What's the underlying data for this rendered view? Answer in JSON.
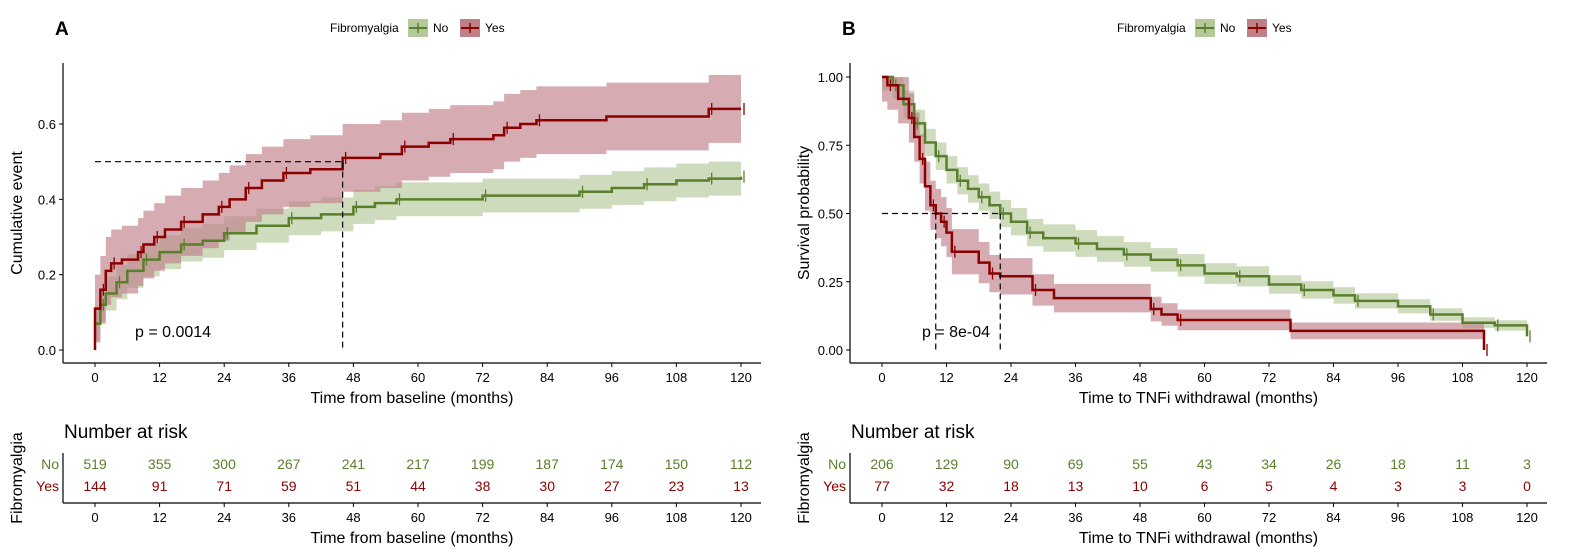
{
  "colors": {
    "No": "#5a7f2b",
    "Yes": "#8b0000",
    "No_fill": "#b4c89a",
    "Yes_fill": "#c08088"
  },
  "chart_data": [
    {
      "type": "line",
      "panel_label": "A",
      "legend_title": "Fibromyalgia",
      "legend_position": "top",
      "xlabel": "Time from baseline (months)",
      "ylabel": "Cumulative event",
      "xlim": [
        0,
        120
      ],
      "ylim": [
        0,
        0.7
      ],
      "xticks": [
        0,
        12,
        24,
        36,
        48,
        60,
        72,
        84,
        96,
        108,
        120
      ],
      "yticks": [
        "0.0",
        "0.2",
        "0.4",
        "0.6"
      ],
      "ytick_values": [
        0,
        0.2,
        0.4,
        0.6
      ],
      "p_value": "p = 0.0014",
      "median_lines": {
        "y": 0.5,
        "x": [
          46
        ]
      },
      "series": [
        {
          "name": "No",
          "x": [
            0,
            1,
            2,
            4,
            6,
            9,
            12,
            16,
            20,
            24,
            30,
            36,
            42,
            48,
            52,
            56,
            64,
            72,
            84,
            90,
            96,
            102,
            108,
            114,
            120
          ],
          "y": [
            0.07,
            0.12,
            0.15,
            0.18,
            0.21,
            0.24,
            0.26,
            0.28,
            0.29,
            0.31,
            0.33,
            0.35,
            0.36,
            0.38,
            0.39,
            0.4,
            0.4,
            0.41,
            0.41,
            0.42,
            0.43,
            0.44,
            0.45,
            0.455,
            0.46
          ],
          "ci": 0.045
        },
        {
          "name": "Yes",
          "x": [
            0,
            1,
            2,
            3,
            5,
            8,
            9,
            11,
            13,
            16,
            20,
            23,
            25,
            28,
            31,
            35,
            40,
            46,
            53,
            57,
            62,
            66,
            74,
            76,
            79,
            82,
            95,
            114,
            120
          ],
          "y": [
            0.11,
            0.16,
            0.21,
            0.23,
            0.24,
            0.26,
            0.28,
            0.3,
            0.32,
            0.34,
            0.36,
            0.38,
            0.4,
            0.43,
            0.45,
            0.47,
            0.48,
            0.51,
            0.52,
            0.54,
            0.55,
            0.56,
            0.57,
            0.59,
            0.6,
            0.61,
            0.62,
            0.64,
            0.64
          ],
          "ci": 0.09
        }
      ],
      "risk_table": {
        "title": "Number at risk",
        "ylabel": "Fibromyalgia",
        "xlabel": "Time from baseline (months)",
        "No": [
          "519",
          "355",
          "300",
          "267",
          "241",
          "217",
          "199",
          "187",
          "174",
          "150",
          "112"
        ],
        "Yes": [
          "144",
          "91",
          "71",
          "59",
          "51",
          "44",
          "38",
          "30",
          "27",
          "23",
          "13"
        ]
      }
    },
    {
      "type": "line",
      "panel_label": "B",
      "legend_title": "Fibromyalgia",
      "legend_position": "top",
      "xlabel": "Time to TNFi withdrawal (months)",
      "ylabel": "Survival probability",
      "xlim": [
        0,
        120
      ],
      "ylim": [
        0,
        1
      ],
      "xticks": [
        0,
        12,
        24,
        36,
        48,
        60,
        72,
        84,
        96,
        108,
        120
      ],
      "yticks": [
        "0.00",
        "0.25",
        "0.50",
        "0.75",
        "1.00"
      ],
      "ytick_values": [
        0,
        0.25,
        0.5,
        0.75,
        1
      ],
      "p_value": "p = 8e-04",
      "median_lines": {
        "y": 0.5,
        "x": [
          10,
          22
        ]
      },
      "series": [
        {
          "name": "No",
          "x": [
            0,
            2,
            4,
            6,
            8,
            10,
            12,
            14,
            16,
            18,
            20,
            22,
            24,
            27,
            30,
            36,
            40,
            45,
            50,
            55,
            60,
            66,
            72,
            78,
            84,
            88,
            96,
            102,
            108,
            114,
            120
          ],
          "y": [
            1,
            0.97,
            0.9,
            0.83,
            0.76,
            0.71,
            0.66,
            0.62,
            0.59,
            0.56,
            0.53,
            0.5,
            0.47,
            0.43,
            0.41,
            0.39,
            0.37,
            0.35,
            0.33,
            0.31,
            0.28,
            0.27,
            0.24,
            0.22,
            0.2,
            0.18,
            0.16,
            0.13,
            0.1,
            0.09,
            0.05
          ],
          "ci": 0.05
        },
        {
          "name": "Yes",
          "x": [
            0,
            1,
            3,
            5,
            6,
            7,
            8,
            9,
            10,
            11,
            12,
            13,
            18,
            20,
            22,
            28,
            32,
            50,
            52,
            55,
            76,
            112
          ],
          "y": [
            1,
            0.97,
            0.92,
            0.85,
            0.78,
            0.7,
            0.6,
            0.53,
            0.5,
            0.47,
            0.43,
            0.36,
            0.32,
            0.28,
            0.27,
            0.22,
            0.19,
            0.15,
            0.13,
            0.11,
            0.07,
            0
          ],
          "ci": 0.09
        }
      ],
      "risk_table": {
        "title": "Number at risk",
        "ylabel": "Fibromyalgia",
        "xlabel": "Time to TNFi withdrawal (months)",
        "No": [
          "206",
          "129",
          "90",
          "69",
          "55",
          "43",
          "34",
          "26",
          "18",
          "11",
          "3"
        ],
        "Yes": [
          "77",
          "32",
          "18",
          "13",
          "10",
          "6",
          "5",
          "4",
          "3",
          "3",
          "0"
        ]
      }
    }
  ]
}
